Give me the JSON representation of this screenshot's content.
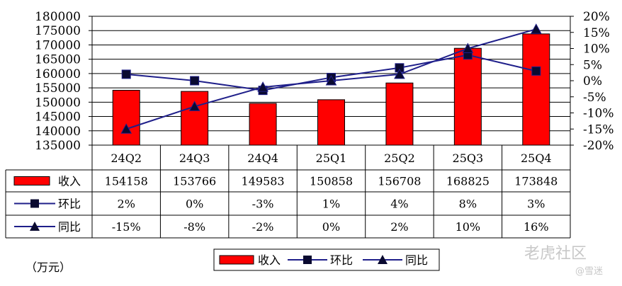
{
  "chart_data": {
    "type": "bar",
    "categories": [
      "24Q2",
      "24Q3",
      "24Q4",
      "25Q1",
      "25Q2",
      "25Q3",
      "25Q4"
    ],
    "series": [
      {
        "name": "收入",
        "kind": "bar",
        "axis": "left",
        "color": "#ff0000",
        "values": [
          154158,
          153766,
          149583,
          150858,
          156708,
          168825,
          173848
        ]
      },
      {
        "name": "环比",
        "kind": "line",
        "axis": "right",
        "marker": "square",
        "color": "#1f1f8a",
        "values": [
          2,
          0,
          -3,
          1,
          4,
          8,
          3
        ]
      },
      {
        "name": "同比",
        "kind": "line",
        "axis": "right",
        "marker": "triangle",
        "color": "#1f1f8a",
        "values": [
          -15,
          -8,
          -2,
          0,
          2,
          10,
          16
        ]
      }
    ],
    "ylim_left": [
      135000,
      180000
    ],
    "ylim_right": [
      -20,
      20
    ],
    "yticks_left": [
      "180000",
      "175000",
      "170000",
      "165000",
      "160000",
      "155000",
      "150000",
      "145000",
      "140000",
      "135000"
    ],
    "yticks_right": [
      "20%",
      "15%",
      "10%",
      "5%",
      "0%",
      "-5%",
      "-10%",
      "-15%",
      "-20%"
    ],
    "grid": "horizontal",
    "legend": "bottom-center",
    "table_rows": [
      {
        "label": "收入",
        "cells": [
          "154158",
          "153766",
          "149583",
          "150858",
          "156708",
          "168825",
          "173848"
        ]
      },
      {
        "label": "环比",
        "cells": [
          "2%",
          "0%",
          "-3%",
          "1%",
          "4%",
          "8%",
          "3%"
        ]
      },
      {
        "label": "同比",
        "cells": [
          "-15%",
          "-8%",
          "-2%",
          "0%",
          "2%",
          "10%",
          "16%"
        ]
      }
    ]
  },
  "unit_label": "（万元）",
  "watermark": "老虎社区",
  "watermark_sub": "@雪迷"
}
